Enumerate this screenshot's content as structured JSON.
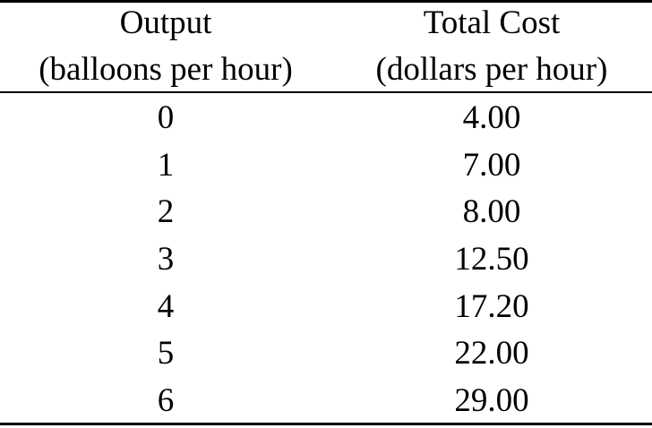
{
  "table": {
    "headers": [
      {
        "line1": "Output",
        "line2": "(balloons per hour)"
      },
      {
        "line1": "Total Cost",
        "line2": "(dollars per hour)"
      }
    ],
    "rows": [
      {
        "output": "0",
        "total_cost": "4.00"
      },
      {
        "output": "1",
        "total_cost": "7.00"
      },
      {
        "output": "2",
        "total_cost": "8.00"
      },
      {
        "output": "3",
        "total_cost": "12.50"
      },
      {
        "output": "4",
        "total_cost": "17.20"
      },
      {
        "output": "5",
        "total_cost": "22.00"
      },
      {
        "output": "6",
        "total_cost": "29.00"
      }
    ]
  }
}
